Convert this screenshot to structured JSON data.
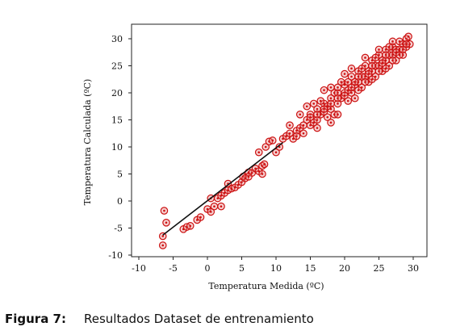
{
  "caption": {
    "label": "Figura 7:",
    "text": "Resultados Dataset de entrenamiento"
  },
  "chart_data": {
    "type": "scatter",
    "xlabel": "Temperatura Medida (ºC)",
    "ylabel": "Temperatura Calculada (ºC)",
    "xlim": [
      -10,
      30
    ],
    "ylim": [
      -10,
      30
    ],
    "xticks": [
      "-10",
      "-5",
      "0",
      "5",
      "10",
      "15",
      "20",
      "25",
      "30"
    ],
    "yticks": [
      "-10",
      "-5",
      "0",
      "5",
      "10",
      "15",
      "20",
      "25",
      "30"
    ],
    "grid": false,
    "marker_color": "#cc1111",
    "fit_line": {
      "color": "#111111",
      "from": [
        -6.5,
        -6.3
      ],
      "to": [
        11,
        10.8
      ]
    },
    "points": [
      [
        -6.5,
        -8.2
      ],
      [
        -6.3,
        -1.8
      ],
      [
        -6,
        -4
      ],
      [
        -3.5,
        -5.2
      ],
      [
        -3,
        -4.8
      ],
      [
        -2.5,
        -4.6
      ],
      [
        -1.5,
        -3.5
      ],
      [
        -1,
        -3
      ],
      [
        0,
        -1.5
      ],
      [
        0.5,
        -2
      ],
      [
        1,
        -1
      ],
      [
        1.5,
        0.5
      ],
      [
        2,
        1
      ],
      [
        2.5,
        1.5
      ],
      [
        3,
        2
      ],
      [
        3.5,
        2.3
      ],
      [
        4,
        2.5
      ],
      [
        4.5,
        3
      ],
      [
        5,
        3.5
      ],
      [
        5.2,
        4.5
      ],
      [
        5.5,
        4.2
      ],
      [
        6,
        5.3
      ],
      [
        6.5,
        5.2
      ],
      [
        7,
        6
      ],
      [
        7.5,
        5.5
      ],
      [
        8,
        5
      ],
      [
        8,
        6.5
      ],
      [
        8.3,
        6.8
      ],
      [
        7.5,
        9
      ],
      [
        8.5,
        10
      ],
      [
        9,
        11
      ],
      [
        9.5,
        11.2
      ],
      [
        10,
        9
      ],
      [
        10.5,
        10
      ],
      [
        11,
        11.5
      ],
      [
        11.5,
        12
      ],
      [
        12,
        12.5
      ],
      [
        12.5,
        11.5
      ],
      [
        13,
        13
      ],
      [
        13.5,
        13.5
      ],
      [
        13,
        12
      ],
      [
        14,
        14
      ],
      [
        14.5,
        15
      ],
      [
        15,
        16
      ],
      [
        15,
        14
      ],
      [
        15.5,
        14.5
      ],
      [
        16,
        17
      ],
      [
        16,
        15
      ],
      [
        16.5,
        16
      ],
      [
        17,
        18
      ],
      [
        17,
        16.5
      ],
      [
        17.5,
        15.5
      ],
      [
        18,
        19
      ],
      [
        18,
        17
      ],
      [
        18.5,
        16
      ],
      [
        18.5,
        20
      ],
      [
        19,
        18
      ],
      [
        19,
        16
      ],
      [
        19.5,
        19
      ],
      [
        20,
        20
      ],
      [
        20,
        21.5
      ],
      [
        20.5,
        18.5
      ],
      [
        20.5,
        22
      ],
      [
        21,
        20
      ],
      [
        21,
        23
      ],
      [
        21.5,
        19
      ],
      [
        21.5,
        21.5
      ],
      [
        22,
        22
      ],
      [
        22,
        24
      ],
      [
        22.5,
        21
      ],
      [
        22.5,
        23
      ],
      [
        23,
        23
      ],
      [
        23,
        25
      ],
      [
        23.5,
        22
      ],
      [
        23.5,
        24
      ],
      [
        24,
        24
      ],
      [
        24,
        26
      ],
      [
        24.5,
        23
      ],
      [
        24.5,
        25
      ],
      [
        25,
        25
      ],
      [
        25,
        27
      ],
      [
        25.5,
        24
      ],
      [
        25.5,
        26
      ],
      [
        26,
        26
      ],
      [
        26,
        28
      ],
      [
        26.5,
        25
      ],
      [
        26.5,
        27
      ],
      [
        27,
        27
      ],
      [
        27,
        28.5
      ],
      [
        27.5,
        26
      ],
      [
        27.5,
        28
      ],
      [
        28,
        28
      ],
      [
        28,
        29.5
      ],
      [
        28.5,
        27
      ],
      [
        28.5,
        29
      ],
      [
        29,
        28.5
      ],
      [
        29,
        30
      ],
      [
        29.5,
        29
      ],
      [
        29.3,
        30.4
      ],
      [
        14.5,
        17.5
      ],
      [
        16.5,
        18.5
      ],
      [
        18,
        21
      ],
      [
        19.5,
        22
      ],
      [
        17,
        20.5
      ],
      [
        15.5,
        18
      ],
      [
        13.5,
        16
      ],
      [
        20,
        23.5
      ],
      [
        21,
        24.5
      ],
      [
        12,
        14
      ],
      [
        19,
        20
      ],
      [
        22,
        20.5
      ],
      [
        24,
        22.5
      ],
      [
        26,
        24.5
      ],
      [
        23,
        26.5
      ],
      [
        25,
        28
      ],
      [
        27,
        29.5
      ],
      [
        18,
        14.5
      ],
      [
        16,
        13.5
      ],
      [
        14,
        12.5
      ],
      [
        17.5,
        17.5
      ],
      [
        21.5,
        22
      ],
      [
        23.5,
        23.5
      ],
      [
        25.5,
        25.5
      ],
      [
        27.5,
        27.5
      ],
      [
        28.5,
        28
      ],
      [
        20.5,
        20.5
      ],
      [
        19,
        21
      ],
      [
        22.5,
        24.5
      ],
      [
        24.5,
        26.5
      ],
      [
        26.5,
        28.5
      ],
      [
        15,
        15.5
      ],
      [
        16,
        16
      ],
      [
        17,
        17
      ],
      [
        18,
        18
      ],
      [
        19,
        19
      ],
      [
        20,
        19.5
      ],
      [
        21,
        21
      ],
      [
        22,
        23
      ],
      [
        23,
        22
      ],
      [
        24,
        25
      ],
      [
        25,
        24
      ],
      [
        26,
        27
      ],
      [
        27,
        26
      ],
      [
        28,
        27
      ],
      [
        29,
        29
      ],
      [
        -6.5,
        -6.5
      ],
      [
        2,
        -1
      ],
      [
        0.5,
        0.5
      ],
      [
        3,
        3.2
      ],
      [
        6,
        4.5
      ]
    ]
  }
}
